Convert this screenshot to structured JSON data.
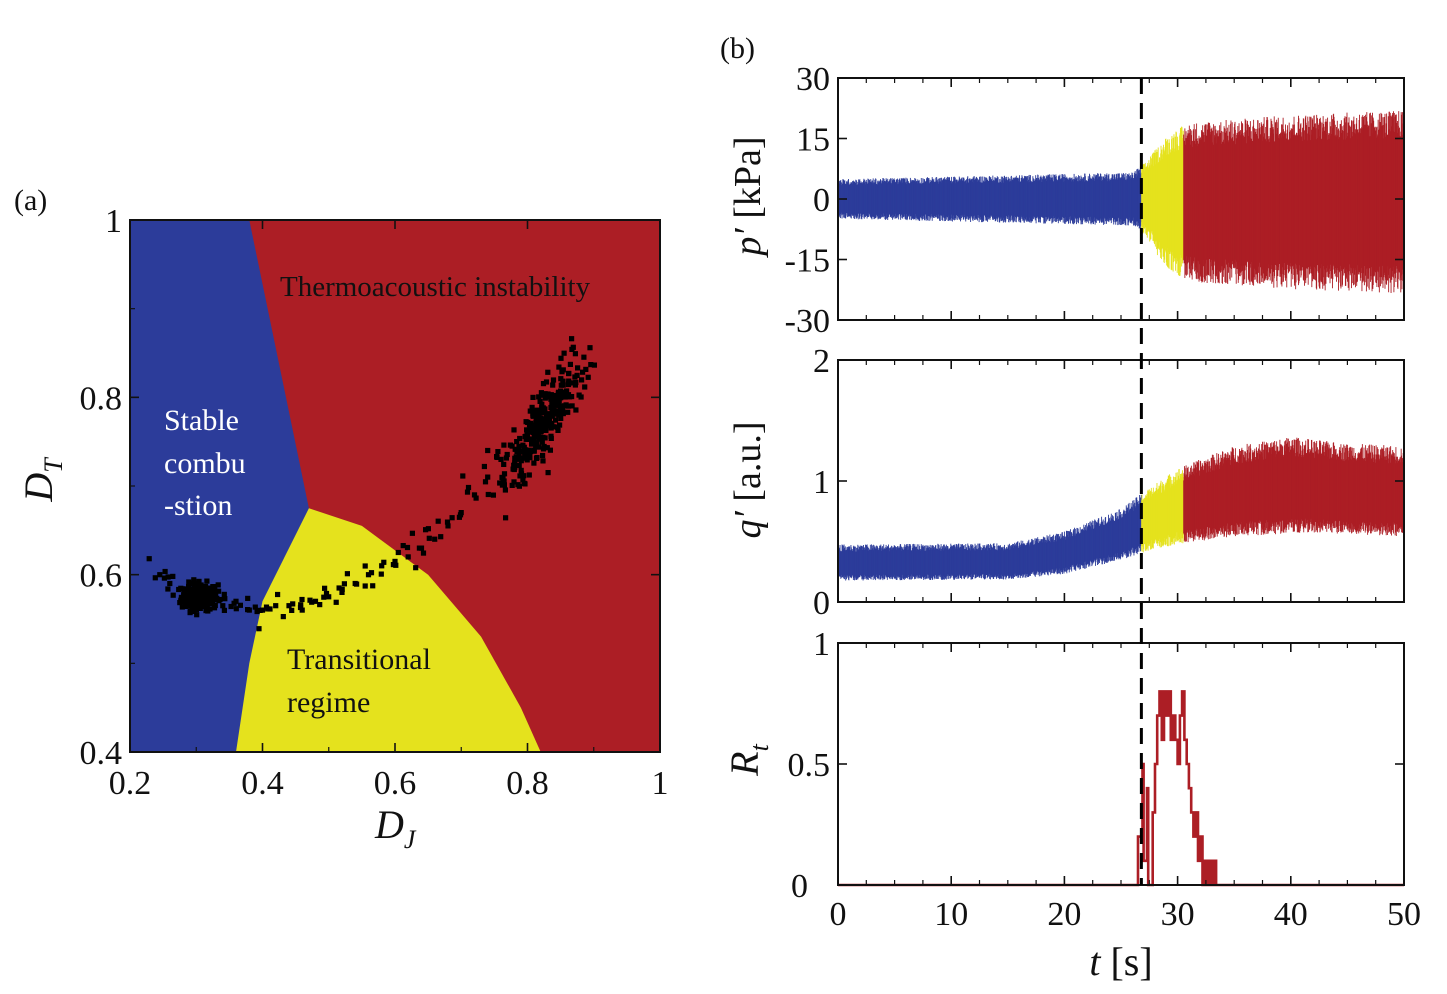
{
  "colors": {
    "stable": "#2c3c9a",
    "transition": "#e5e21d",
    "instability": "#ac1e25",
    "points": "#000000",
    "dashed_line": "#000000"
  },
  "panel_a": {
    "panel_label": "(a)",
    "xlabel_main": "D",
    "xlabel_sub": "J",
    "ylabel_main": "D",
    "ylabel_sub": "T",
    "region_labels": {
      "instability": "Thermoacoustic instability",
      "stable_line1": "Stable",
      "stable_line2": "combu",
      "stable_line3": "-stion",
      "transition_line1": "Transitional",
      "transition_line2": "regime"
    }
  },
  "panel_b": {
    "panel_label": "(b)",
    "p_label_var": "p′",
    "p_label_unit": "[kPa]",
    "q_label_var": "q′",
    "q_label_unit": "[a.u.]",
    "r_label_main": "R",
    "r_label_sub": "t",
    "xlabel_var": "t",
    "xlabel_unit": "[s]",
    "onset_time": 26.8
  },
  "chart_data": [
    {
      "type": "scatter",
      "panel": "(a)",
      "xlabel": "D_J",
      "ylabel": "D_T",
      "xlim": [
        0.2,
        1.0
      ],
      "ylim": [
        0.4,
        1.0
      ],
      "xticks": [
        "0.2",
        "0.4",
        "0.6",
        "0.8",
        "1"
      ],
      "yticks": [
        "0.4",
        "0.6",
        "0.8",
        "1"
      ],
      "regions": {
        "stable_right_boundary": [
          [
            0.36,
            0.4
          ],
          [
            0.4,
            0.55
          ],
          [
            0.47,
            0.675
          ],
          [
            0.38,
            1.0
          ]
        ],
        "transition_boundary": [
          [
            0.36,
            0.4
          ],
          [
            0.38,
            0.5
          ],
          [
            0.4,
            0.57
          ],
          [
            0.47,
            0.675
          ],
          [
            0.55,
            0.655
          ],
          [
            0.65,
            0.6
          ],
          [
            0.73,
            0.53
          ],
          [
            0.79,
            0.45
          ],
          [
            0.82,
            0.4
          ]
        ]
      },
      "clusters": [
        {
          "center": [
            0.305,
            0.575
          ],
          "spread": [
            0.025,
            0.014
          ],
          "count": 260
        },
        {
          "center": [
            0.82,
            0.77
          ],
          "spread": [
            0.025,
            0.03
          ],
          "count": 300
        }
      ],
      "path_points": [
        [
          0.245,
          0.6
        ],
        [
          0.26,
          0.59
        ],
        [
          0.34,
          0.565
        ],
        [
          0.36,
          0.57
        ],
        [
          0.38,
          0.56
        ],
        [
          0.4,
          0.56
        ],
        [
          0.42,
          0.565
        ],
        [
          0.44,
          0.565
        ],
        [
          0.46,
          0.56
        ],
        [
          0.48,
          0.57
        ],
        [
          0.5,
          0.575
        ],
        [
          0.52,
          0.58
        ],
        [
          0.54,
          0.59
        ],
        [
          0.56,
          0.6
        ],
        [
          0.58,
          0.61
        ],
        [
          0.6,
          0.615
        ],
        [
          0.62,
          0.62
        ],
        [
          0.64,
          0.63
        ],
        [
          0.66,
          0.64
        ],
        [
          0.68,
          0.655
        ],
        [
          0.7,
          0.67
        ],
        [
          0.72,
          0.69
        ],
        [
          0.74,
          0.71
        ],
        [
          0.76,
          0.73
        ]
      ],
      "region_colors": {
        "stable": "blue",
        "transition": "yellow",
        "instability": "red"
      }
    },
    {
      "type": "line",
      "panel": "(b) top",
      "ylabel": "p′ [kPa]",
      "xlim": [
        0,
        50
      ],
      "ylim": [
        -30,
        30
      ],
      "yticks": [
        "-30",
        "-15",
        "0",
        "15",
        "30"
      ],
      "envelope": {
        "t": [
          0,
          26,
          27,
          28,
          29,
          30,
          31,
          32,
          35,
          40,
          45,
          50
        ],
        "amplitude": [
          4.5,
          6.0,
          8.0,
          11.0,
          14.0,
          16.0,
          17.0,
          17.5,
          18.0,
          19.0,
          19.5,
          20.0
        ]
      },
      "colored_segments": [
        {
          "t": [
            0,
            26.8
          ],
          "color": "blue"
        },
        {
          "t": [
            26.8,
            30.5
          ],
          "color": "yellow"
        },
        {
          "t": [
            30.5,
            50
          ],
          "color": "red"
        }
      ]
    },
    {
      "type": "line",
      "panel": "(b) middle",
      "ylabel": "q′ [a.u.]",
      "xlim": [
        0,
        50
      ],
      "ylim": [
        0,
        2
      ],
      "yticks": [
        "0",
        "1",
        "2"
      ],
      "baseline": {
        "t": [
          0,
          15,
          20,
          25,
          27,
          30,
          35,
          40,
          45,
          50
        ],
        "mean": [
          0.32,
          0.33,
          0.4,
          0.55,
          0.65,
          0.78,
          0.9,
          0.95,
          0.92,
          0.9
        ],
        "amplitude": [
          0.12,
          0.12,
          0.14,
          0.17,
          0.2,
          0.25,
          0.3,
          0.32,
          0.3,
          0.3
        ]
      },
      "colored_segments": [
        {
          "t": [
            0,
            26.8
          ],
          "color": "blue"
        },
        {
          "t": [
            26.8,
            30.5
          ],
          "color": "yellow"
        },
        {
          "t": [
            30.5,
            50
          ],
          "color": "red"
        }
      ]
    },
    {
      "type": "line",
      "panel": "(b) bottom",
      "ylabel": "R_t",
      "xlabel": "t [s]",
      "xlim": [
        0,
        50
      ],
      "ylim": [
        0,
        1
      ],
      "xticks": [
        "0",
        "10",
        "20",
        "30",
        "40",
        "50"
      ],
      "yticks": [
        "0",
        "0.5",
        "1"
      ],
      "x": [
        0,
        26.4,
        26.5,
        26.9,
        27.0,
        27.3,
        27.4,
        27.8,
        28.0,
        28.2,
        28.4,
        28.6,
        28.8,
        29.0,
        29.2,
        29.4,
        29.6,
        29.8,
        30.0,
        30.2,
        30.4,
        30.6,
        30.8,
        31.0,
        31.2,
        31.4,
        31.6,
        31.8,
        32.0,
        32.2,
        32.4,
        32.6,
        32.8,
        33.0,
        33.2,
        33.4,
        50
      ],
      "y": [
        0,
        0,
        0.2,
        0.5,
        0.1,
        0.4,
        0.0,
        0.3,
        0.5,
        0.7,
        0.8,
        0.6,
        0.8,
        0.7,
        0.8,
        0.6,
        0.7,
        0.6,
        0.5,
        0.7,
        0.8,
        0.6,
        0.5,
        0.4,
        0.3,
        0.2,
        0.3,
        0.1,
        0.2,
        0.0,
        0.1,
        0.0,
        0.1,
        0.0,
        0.1,
        0.0,
        0
      ]
    }
  ]
}
